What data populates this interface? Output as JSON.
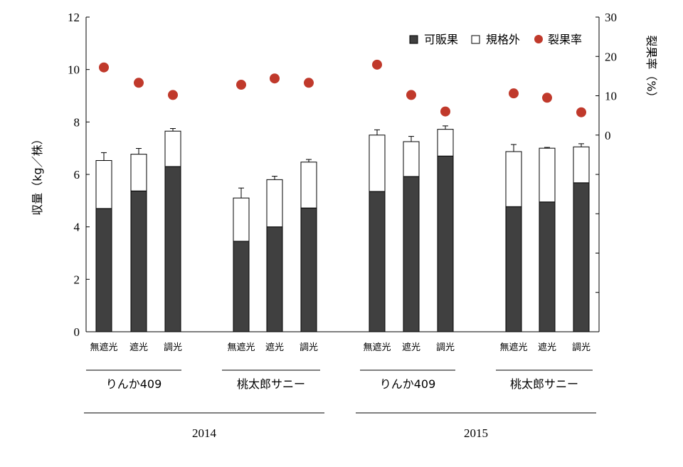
{
  "chart_data": {
    "type": "bar",
    "description_units": {
      "left_axis": "kg/plant",
      "right_axis": "%"
    },
    "ylabel": "収量（kg／株）",
    "y2label": "裂果率（%）",
    "ylim": [
      0,
      12
    ],
    "yticks": [
      "0",
      "2",
      "4",
      "6",
      "8",
      "10",
      "12"
    ],
    "y2lim": [
      -50,
      30
    ],
    "y2ticks": [
      "0",
      "10",
      "20",
      "30"
    ],
    "legend": {
      "placement": "top-right",
      "items": [
        {
          "label": "可販果",
          "marker": "filled-square"
        },
        {
          "label": "規格外",
          "marker": "open-square"
        },
        {
          "label": "裂果率",
          "marker": "red-circle"
        }
      ]
    },
    "categories": [
      "無遮光",
      "遮光",
      "調光",
      "無遮光",
      "遮光",
      "調光",
      "無遮光",
      "遮光",
      "調光",
      "無遮光",
      "遮光",
      "調光"
    ],
    "groups": [
      {
        "label": "りんか409",
        "members": [
          0,
          1,
          2
        ]
      },
      {
        "label": "桃太郎サニー",
        "members": [
          3,
          4,
          5
        ]
      },
      {
        "label": "りんか409",
        "members": [
          6,
          7,
          8
        ]
      },
      {
        "label": "桃太郎サニー",
        "members": [
          9,
          10,
          11
        ]
      }
    ],
    "years": [
      {
        "label": "2014",
        "groups": [
          0,
          1
        ]
      },
      {
        "label": "2015",
        "groups": [
          2,
          3
        ]
      }
    ],
    "series": [
      {
        "name": "可販果",
        "stack": "yield",
        "values": [
          4.7,
          5.37,
          6.3,
          3.45,
          4.0,
          4.72,
          5.35,
          5.92,
          6.7,
          4.77,
          4.95,
          5.68
        ]
      },
      {
        "name": "規格外",
        "stack": "yield",
        "values": [
          1.83,
          1.4,
          1.35,
          1.65,
          1.8,
          1.75,
          2.15,
          1.33,
          1.02,
          2.1,
          2.05,
          1.37
        ]
      }
    ],
    "error_bars_total": [
      0.3,
      0.22,
      0.1,
      0.38,
      0.13,
      0.1,
      0.2,
      0.2,
      0.13,
      0.27,
      0.03,
      0.12
    ],
    "crack_rate": {
      "name": "裂果率",
      "axis": "right",
      "values": [
        17.2,
        13.3,
        10.2,
        12.8,
        14.4,
        13.3,
        17.9,
        10.2,
        6.0,
        10.6,
        9.5,
        5.8
      ]
    }
  },
  "colors": {
    "marketable": "#404040",
    "nonstandard": "#ffffff",
    "crack_marker": "#c0392b",
    "axis": "#000000"
  }
}
